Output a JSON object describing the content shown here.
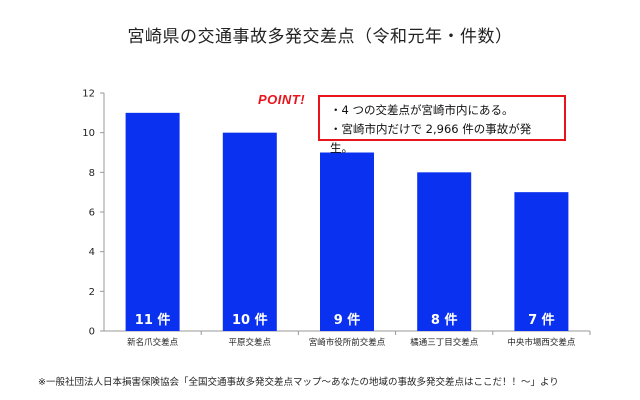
{
  "chart_data": {
    "type": "bar",
    "title": "宮崎県の交通事故多発交差点（令和元年・件数）",
    "categories": [
      "新名爪交差点",
      "平原交差点",
      "宮崎市役所前交差点",
      "橘通三丁目交差点",
      "中央市場西交差点"
    ],
    "values": [
      11,
      10,
      9,
      8,
      7
    ],
    "data_labels": [
      "11 件",
      "10 件",
      "9 件",
      "8 件",
      "7 件"
    ],
    "yticks": [
      "0",
      "2",
      "4",
      "6",
      "8",
      "10",
      "12"
    ],
    "ylim": [
      0,
      12
    ],
    "grid": false,
    "bar_color": "#0a30f0"
  },
  "callout": {
    "label": "POINT!",
    "lines": [
      "・4 つの交差点が宮崎市内にある。",
      "・宮崎市内だけで 2,966 件の事故が発生。"
    ],
    "color": "#e8141c"
  },
  "footnote": "※一般社団法人日本損害保険協会「全国交通事故多発交差点マップ～あなたの地域の事故多発交差点はここだ！！～」より"
}
